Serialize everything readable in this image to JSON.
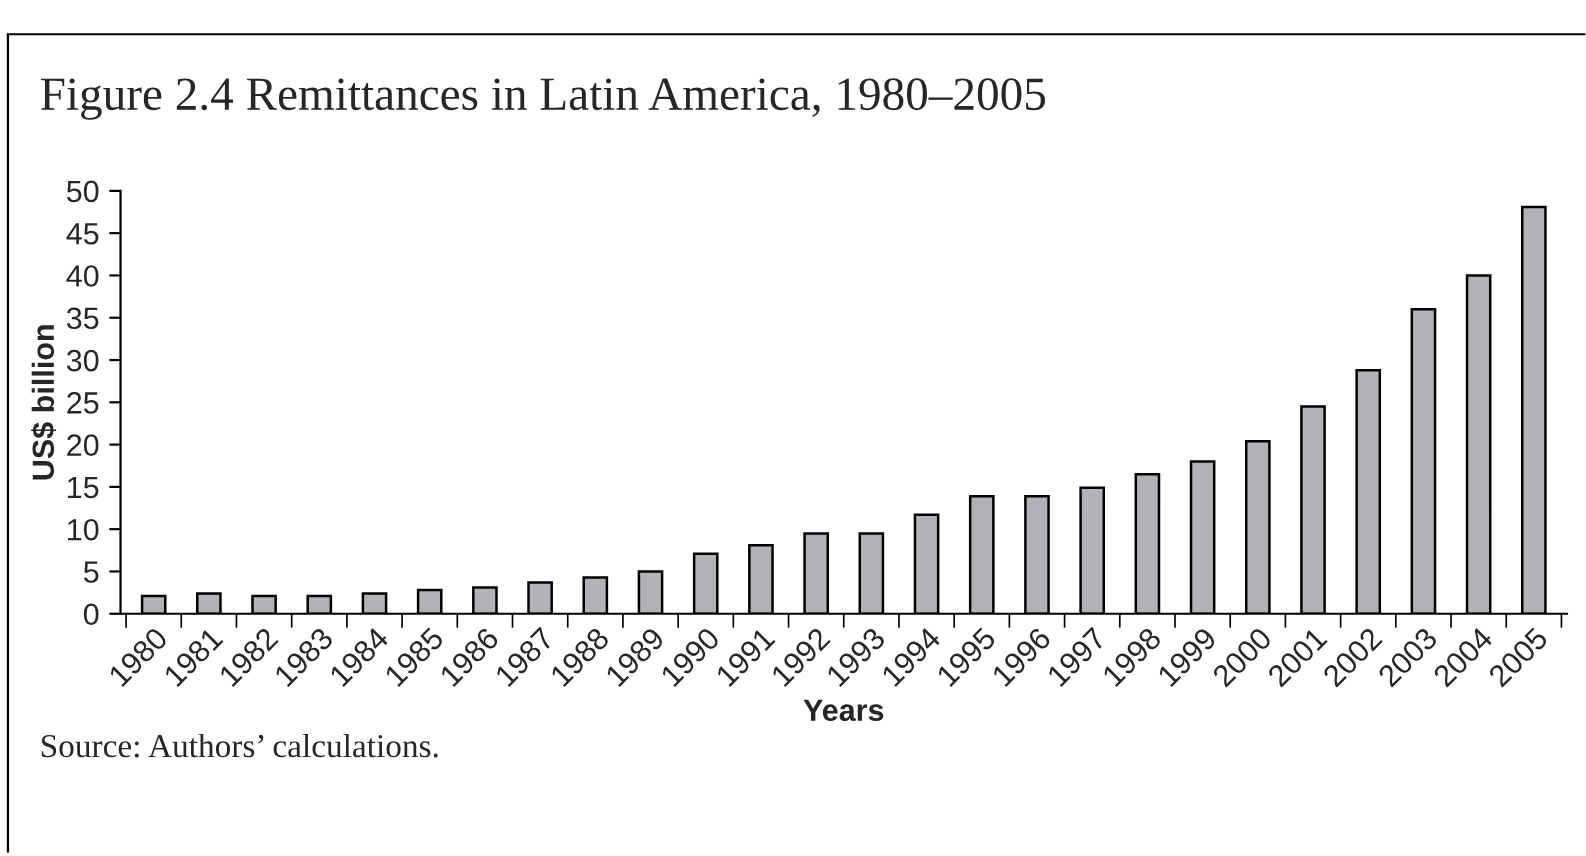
{
  "chart_data": {
    "type": "bar",
    "title": "Figure 2.4 Remittances in Latin America, 1980–2005",
    "xlabel": "Years",
    "ylabel": "US$ billion",
    "categories": [
      "1980",
      "1981",
      "1982",
      "1983",
      "1984",
      "1985",
      "1986",
      "1987",
      "1988",
      "1989",
      "1990",
      "1991",
      "1992",
      "1993",
      "1994",
      "1995",
      "1996",
      "1997",
      "1998",
      "1999",
      "2000",
      "2001",
      "2002",
      "2003",
      "2004",
      "2005"
    ],
    "values": [
      2.1,
      2.4,
      2.1,
      2.1,
      2.4,
      2.8,
      3.1,
      3.7,
      4.3,
      5.0,
      7.1,
      8.1,
      9.5,
      9.5,
      11.7,
      13.9,
      13.9,
      14.9,
      16.5,
      18.0,
      20.4,
      24.5,
      28.8,
      36.0,
      40.0,
      48.1
    ],
    "color": "#b0b2b5",
    "ylim": [
      0,
      50
    ],
    "yticks": [
      0,
      5,
      10,
      15,
      20,
      25,
      30,
      35,
      40,
      45,
      50
    ],
    "grid": false,
    "legend": false,
    "annotations": [
      "Source: Authors’ calculations."
    ]
  }
}
